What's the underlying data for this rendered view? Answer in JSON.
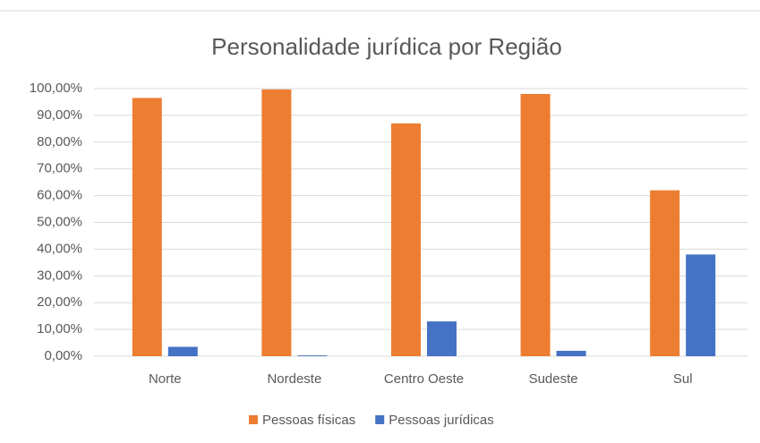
{
  "chart_data": {
    "type": "bar",
    "title": "Personalidade jurídica por Região",
    "categories": [
      "Norte",
      "Nordeste",
      "Centro Oeste",
      "Sudeste",
      "Sul"
    ],
    "series": [
      {
        "name": "Pessoas físicas",
        "color": "#ed7d31",
        "values": [
          96.5,
          99.7,
          87,
          98,
          62
        ]
      },
      {
        "name": "Pessoas jurídicas",
        "color": "#4472c4",
        "values": [
          3.5,
          0.3,
          13,
          2,
          38
        ]
      }
    ],
    "ylim": [
      0,
      100
    ],
    "yticks": [
      {
        "value": 0,
        "label": "0,00%"
      },
      {
        "value": 10,
        "label": "10,00%"
      },
      {
        "value": 20,
        "label": "20,00%"
      },
      {
        "value": 30,
        "label": "30,00%"
      },
      {
        "value": 40,
        "label": "40,00%"
      },
      {
        "value": 50,
        "label": "50,00%"
      },
      {
        "value": 60,
        "label": "60,00%"
      },
      {
        "value": 70,
        "label": "70,00%"
      },
      {
        "value": 80,
        "label": "80,00%"
      },
      {
        "value": 90,
        "label": "90,00%"
      },
      {
        "value": 100,
        "label": "100,00%"
      }
    ],
    "grid": true,
    "legend": "bottom"
  }
}
